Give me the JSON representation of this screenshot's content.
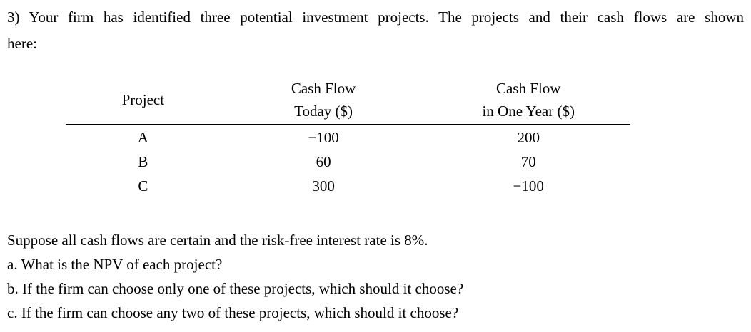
{
  "problem": {
    "statement_line1": "3) Your firm has identified three potential investment projects. The projects and their cash flows are shown",
    "statement_line2": "here:"
  },
  "table": {
    "headers": [
      {
        "line1": "Project",
        "line2": ""
      },
      {
        "line1": "Cash Flow",
        "line2": "Today ($)"
      },
      {
        "line1": "Cash Flow",
        "line2": "in One Year ($)"
      }
    ],
    "rows": [
      {
        "project": "A",
        "cash_flow_today": "−100",
        "cash_flow_one_year": "200"
      },
      {
        "project": "B",
        "cash_flow_today": "60",
        "cash_flow_one_year": "70"
      },
      {
        "project": "C",
        "cash_flow_today": "300",
        "cash_flow_one_year": "−100"
      }
    ]
  },
  "questions": {
    "premise": "Suppose all cash flows are certain and the risk-free interest rate is 8%.",
    "a": "a. What is the NPV of each project?",
    "b": "b. If the firm can choose only one of these projects, which should it choose?",
    "c": "c. If the firm can choose any two of these projects, which should it choose?"
  },
  "colors": {
    "text": "#000000",
    "background": "#ffffff",
    "table_rule": "#000000"
  }
}
